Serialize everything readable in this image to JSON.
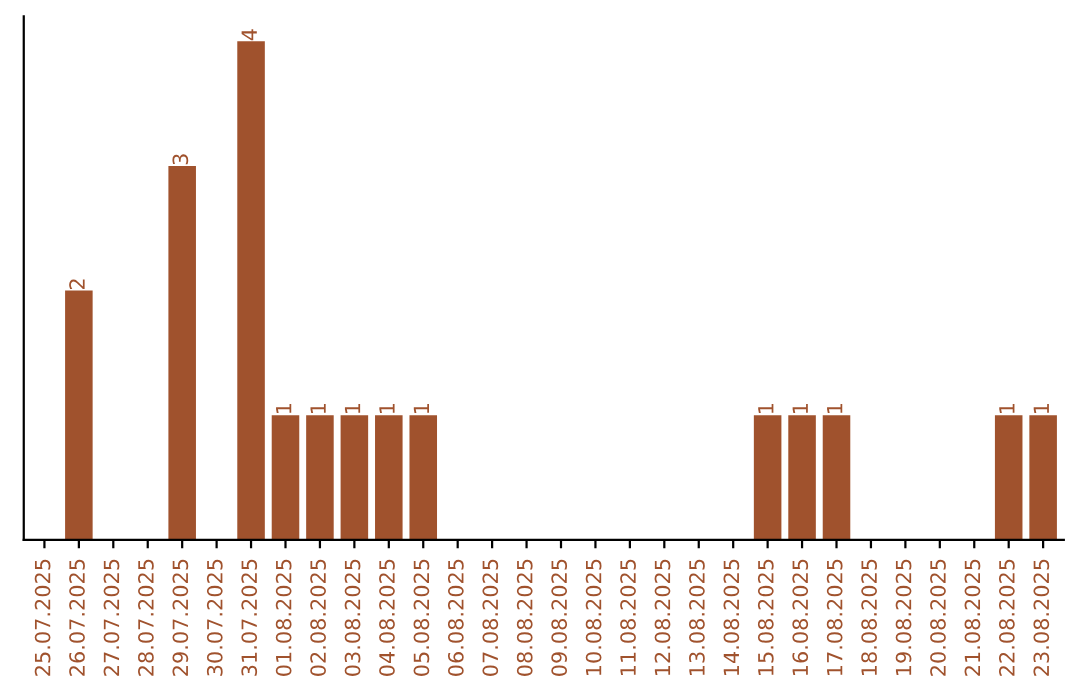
{
  "chart_data": {
    "type": "bar",
    "categories": [
      "25.07.2025",
      "26.07.2025",
      "27.07.2025",
      "28.07.2025",
      "29.07.2025",
      "30.07.2025",
      "31.07.2025",
      "01.08.2025",
      "02.08.2025",
      "03.08.2025",
      "04.08.2025",
      "05.08.2025",
      "06.08.2025",
      "07.08.2025",
      "08.08.2025",
      "09.08.2025",
      "10.08.2025",
      "11.08.2025",
      "12.08.2025",
      "13.08.2025",
      "14.08.2025",
      "15.08.2025",
      "16.08.2025",
      "17.08.2025",
      "18.08.2025",
      "19.08.2025",
      "20.08.2025",
      "21.08.2025",
      "22.08.2025",
      "23.08.2025"
    ],
    "values": [
      0,
      2,
      0,
      0,
      3,
      0,
      4,
      1,
      1,
      1,
      1,
      1,
      0,
      0,
      0,
      0,
      0,
      0,
      0,
      0,
      0,
      1,
      1,
      1,
      0,
      0,
      0,
      0,
      1,
      1
    ],
    "value_labels": [
      null,
      "2",
      null,
      null,
      "3",
      null,
      "4",
      "1",
      "1",
      "1",
      "1",
      "1",
      null,
      null,
      null,
      null,
      null,
      null,
      null,
      null,
      null,
      "1",
      "1",
      "1",
      null,
      null,
      null,
      null,
      "1",
      "1"
    ],
    "color": "#a0522d",
    "ylim": [
      0,
      4.2
    ],
    "tick_labels": "x",
    "grid": false,
    "legend": false
  }
}
